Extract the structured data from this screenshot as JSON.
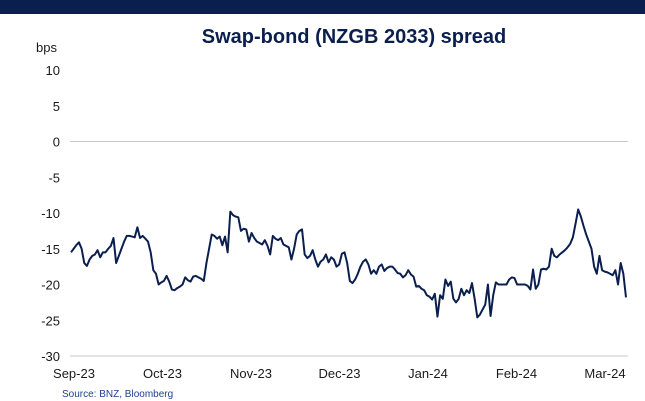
{
  "header": {
    "bar_color": "#0b1f4f"
  },
  "chart_data": {
    "type": "line",
    "title": "Swap-bond (NZGB 2033) spread",
    "ylabel": "bps",
    "xlabel": "",
    "ylim": [
      -30,
      10
    ],
    "yticks": [
      10,
      5,
      0,
      -5,
      -10,
      -15,
      -20,
      -25,
      -30
    ],
    "x_ticks": [
      "Sep-23",
      "Oct-23",
      "Nov-23",
      "Dec-23",
      "Jan-24",
      "Feb-24",
      "Mar-24"
    ],
    "grid": false,
    "legend": "none",
    "line_color": "#0b1f4f",
    "series": [
      {
        "values": [
          -15.5,
          -15,
          -14.5,
          -14.1,
          -15,
          -17,
          -17.4,
          -16.5,
          -16,
          -15.8,
          -15.2,
          -16.2,
          -15.5,
          -15.5,
          -15,
          -14.6,
          -13.5,
          -17,
          -16,
          -15,
          -14,
          -13.2,
          -13.2,
          -13.3,
          -13.4,
          -12,
          -13.5,
          -13.2,
          -13.6,
          -14,
          -15.5,
          -18,
          -18.5,
          -20,
          -19.7,
          -19.5,
          -18.8,
          -19.6,
          -20.7,
          -20.8,
          -20.5,
          -20.3,
          -20,
          -19,
          -19.4,
          -19.6,
          -18.9,
          -18.8,
          -19,
          -19.2,
          -19.5,
          -17,
          -15,
          -13,
          -13.2,
          -13.6,
          -13.3,
          -14.5,
          -13.3,
          -15.5,
          -9.8,
          -10.3,
          -10.5,
          -10.6,
          -12.5,
          -12.2,
          -12.3,
          -14,
          -12.8,
          -13.5,
          -14,
          -14.2,
          -14.4,
          -13.8,
          -14.6,
          -15.8,
          -13.2,
          -13.6,
          -13.8,
          -13.5,
          -14.4,
          -14.6,
          -14.8,
          -16.5,
          -15,
          -13,
          -12.5,
          -12.3,
          -15.8,
          -16.3,
          -16,
          -15.2,
          -16.5,
          -17.5,
          -16.8,
          -16.5,
          -15.8,
          -16.9,
          -16.2,
          -16.5,
          -17.5,
          -17.2,
          -15.7,
          -15.5,
          -17,
          -19.5,
          -19.8,
          -19.3,
          -18.5,
          -17.5,
          -16.8,
          -16.5,
          -17.2,
          -18.5,
          -18,
          -18.5,
          -17.5,
          -17.2,
          -18.1,
          -17.7,
          -17.5,
          -17.5,
          -17.9,
          -18.4,
          -18.5,
          -19,
          -18.7,
          -18,
          -18.6,
          -18.9,
          -20.3,
          -20.2,
          -20.6,
          -20.8,
          -21.5,
          -21.7,
          -22.1,
          -21.3,
          -24.5,
          -21.5,
          -22,
          -19.3,
          -20.2,
          -19.6,
          -22,
          -22.5,
          -22,
          -20.6,
          -21.5,
          -20.8,
          -21.2,
          -19.8,
          -22,
          -24.6,
          -24.2,
          -23.5,
          -22.8,
          -20,
          -24.4,
          -21.5,
          -19.7,
          -20,
          -20,
          -20,
          -20,
          -19.3,
          -19,
          -19.1,
          -20,
          -20,
          -20,
          -20,
          -20.2,
          -20.7,
          -17.9,
          -20.6,
          -20,
          -17.9,
          -17.8,
          -17.9,
          -17.5,
          -15,
          -16,
          -16.2,
          -15.8,
          -15.5,
          -15.2,
          -14.8,
          -14.3,
          -13.4,
          -11.5,
          -9.5,
          -10.5,
          -11.8,
          -13,
          -14,
          -15,
          -17.5,
          -18.5,
          -16,
          -18,
          -18.2,
          -18.3,
          -18.5,
          -18.7,
          -18,
          -20,
          -17,
          -18.5,
          -21.8
        ]
      }
    ]
  },
  "source": "Source: BNZ, Bloomberg"
}
